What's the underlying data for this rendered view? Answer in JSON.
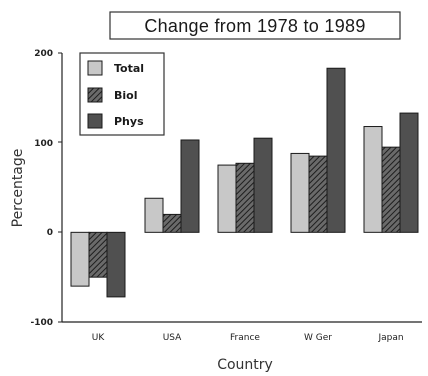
{
  "chart_data": {
    "type": "bar",
    "title": "Change from 1978 to 1989",
    "xlabel": "Country",
    "ylabel": "Percentage",
    "ylim": [
      -100,
      200
    ],
    "yticks": [
      "200",
      "100",
      "0",
      "-100"
    ],
    "categories": [
      "UK",
      "USA",
      "France",
      "W Ger",
      "Japan"
    ],
    "series": [
      {
        "name": "Total",
        "values": [
          -60,
          38,
          75,
          88,
          118
        ],
        "color": "#c8c8c8",
        "pattern": "solid"
      },
      {
        "name": "Biol",
        "values": [
          -50,
          20,
          77,
          85,
          95
        ],
        "color": "#555555",
        "pattern": "hatched"
      },
      {
        "name": "Phys",
        "values": [
          -72,
          103,
          105,
          183,
          133
        ],
        "color": "#505050",
        "pattern": "solid"
      }
    ],
    "legend": "top-left",
    "grid": false
  }
}
